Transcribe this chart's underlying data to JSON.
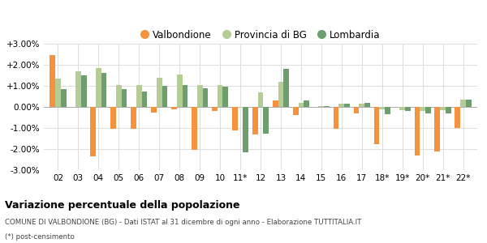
{
  "categories": [
    "02",
    "03",
    "04",
    "05",
    "06",
    "07",
    "08",
    "09",
    "10",
    "11*",
    "12",
    "13",
    "14",
    "15",
    "16",
    "17",
    "18*",
    "19*",
    "20*",
    "21*",
    "22*"
  ],
  "valbondione": [
    2.45,
    0.0,
    -2.35,
    -1.05,
    -1.05,
    -0.25,
    -0.1,
    -2.05,
    -0.2,
    -1.1,
    -1.3,
    0.3,
    -0.4,
    0.0,
    -1.05,
    -0.3,
    -1.75,
    0.0,
    -2.3,
    -2.1,
    -1.0
  ],
  "provincia_bg": [
    1.35,
    1.7,
    1.85,
    1.05,
    1.05,
    1.4,
    1.55,
    1.05,
    1.05,
    -0.05,
    0.7,
    1.2,
    0.2,
    0.05,
    0.15,
    0.15,
    -0.1,
    -0.15,
    -0.2,
    -0.15,
    0.35
  ],
  "lombardia": [
    0.85,
    1.5,
    1.6,
    0.85,
    0.75,
    1.0,
    1.05,
    0.9,
    0.95,
    -2.15,
    -1.25,
    1.8,
    0.3,
    0.05,
    0.15,
    0.2,
    -0.35,
    -0.2,
    -0.3,
    -0.3,
    0.35
  ],
  "color_valbondione": "#f5923e",
  "color_provincia": "#b5cc96",
  "color_lombardia": "#6e9e6e",
  "title": "Variazione percentuale della popolazione",
  "subtitle": "COMUNE DI VALBONDIONE (BG) - Dati ISTAT al 31 dicembre di ogni anno - Elaborazione TUTTITALIA.IT",
  "footnote": "(*) post-censimento",
  "ylim": [
    -3.0,
    3.0
  ],
  "yticks": [
    -3.0,
    -2.0,
    -1.0,
    0.0,
    1.0,
    2.0,
    3.0
  ],
  "background_color": "#ffffff",
  "grid_color": "#dddddd"
}
